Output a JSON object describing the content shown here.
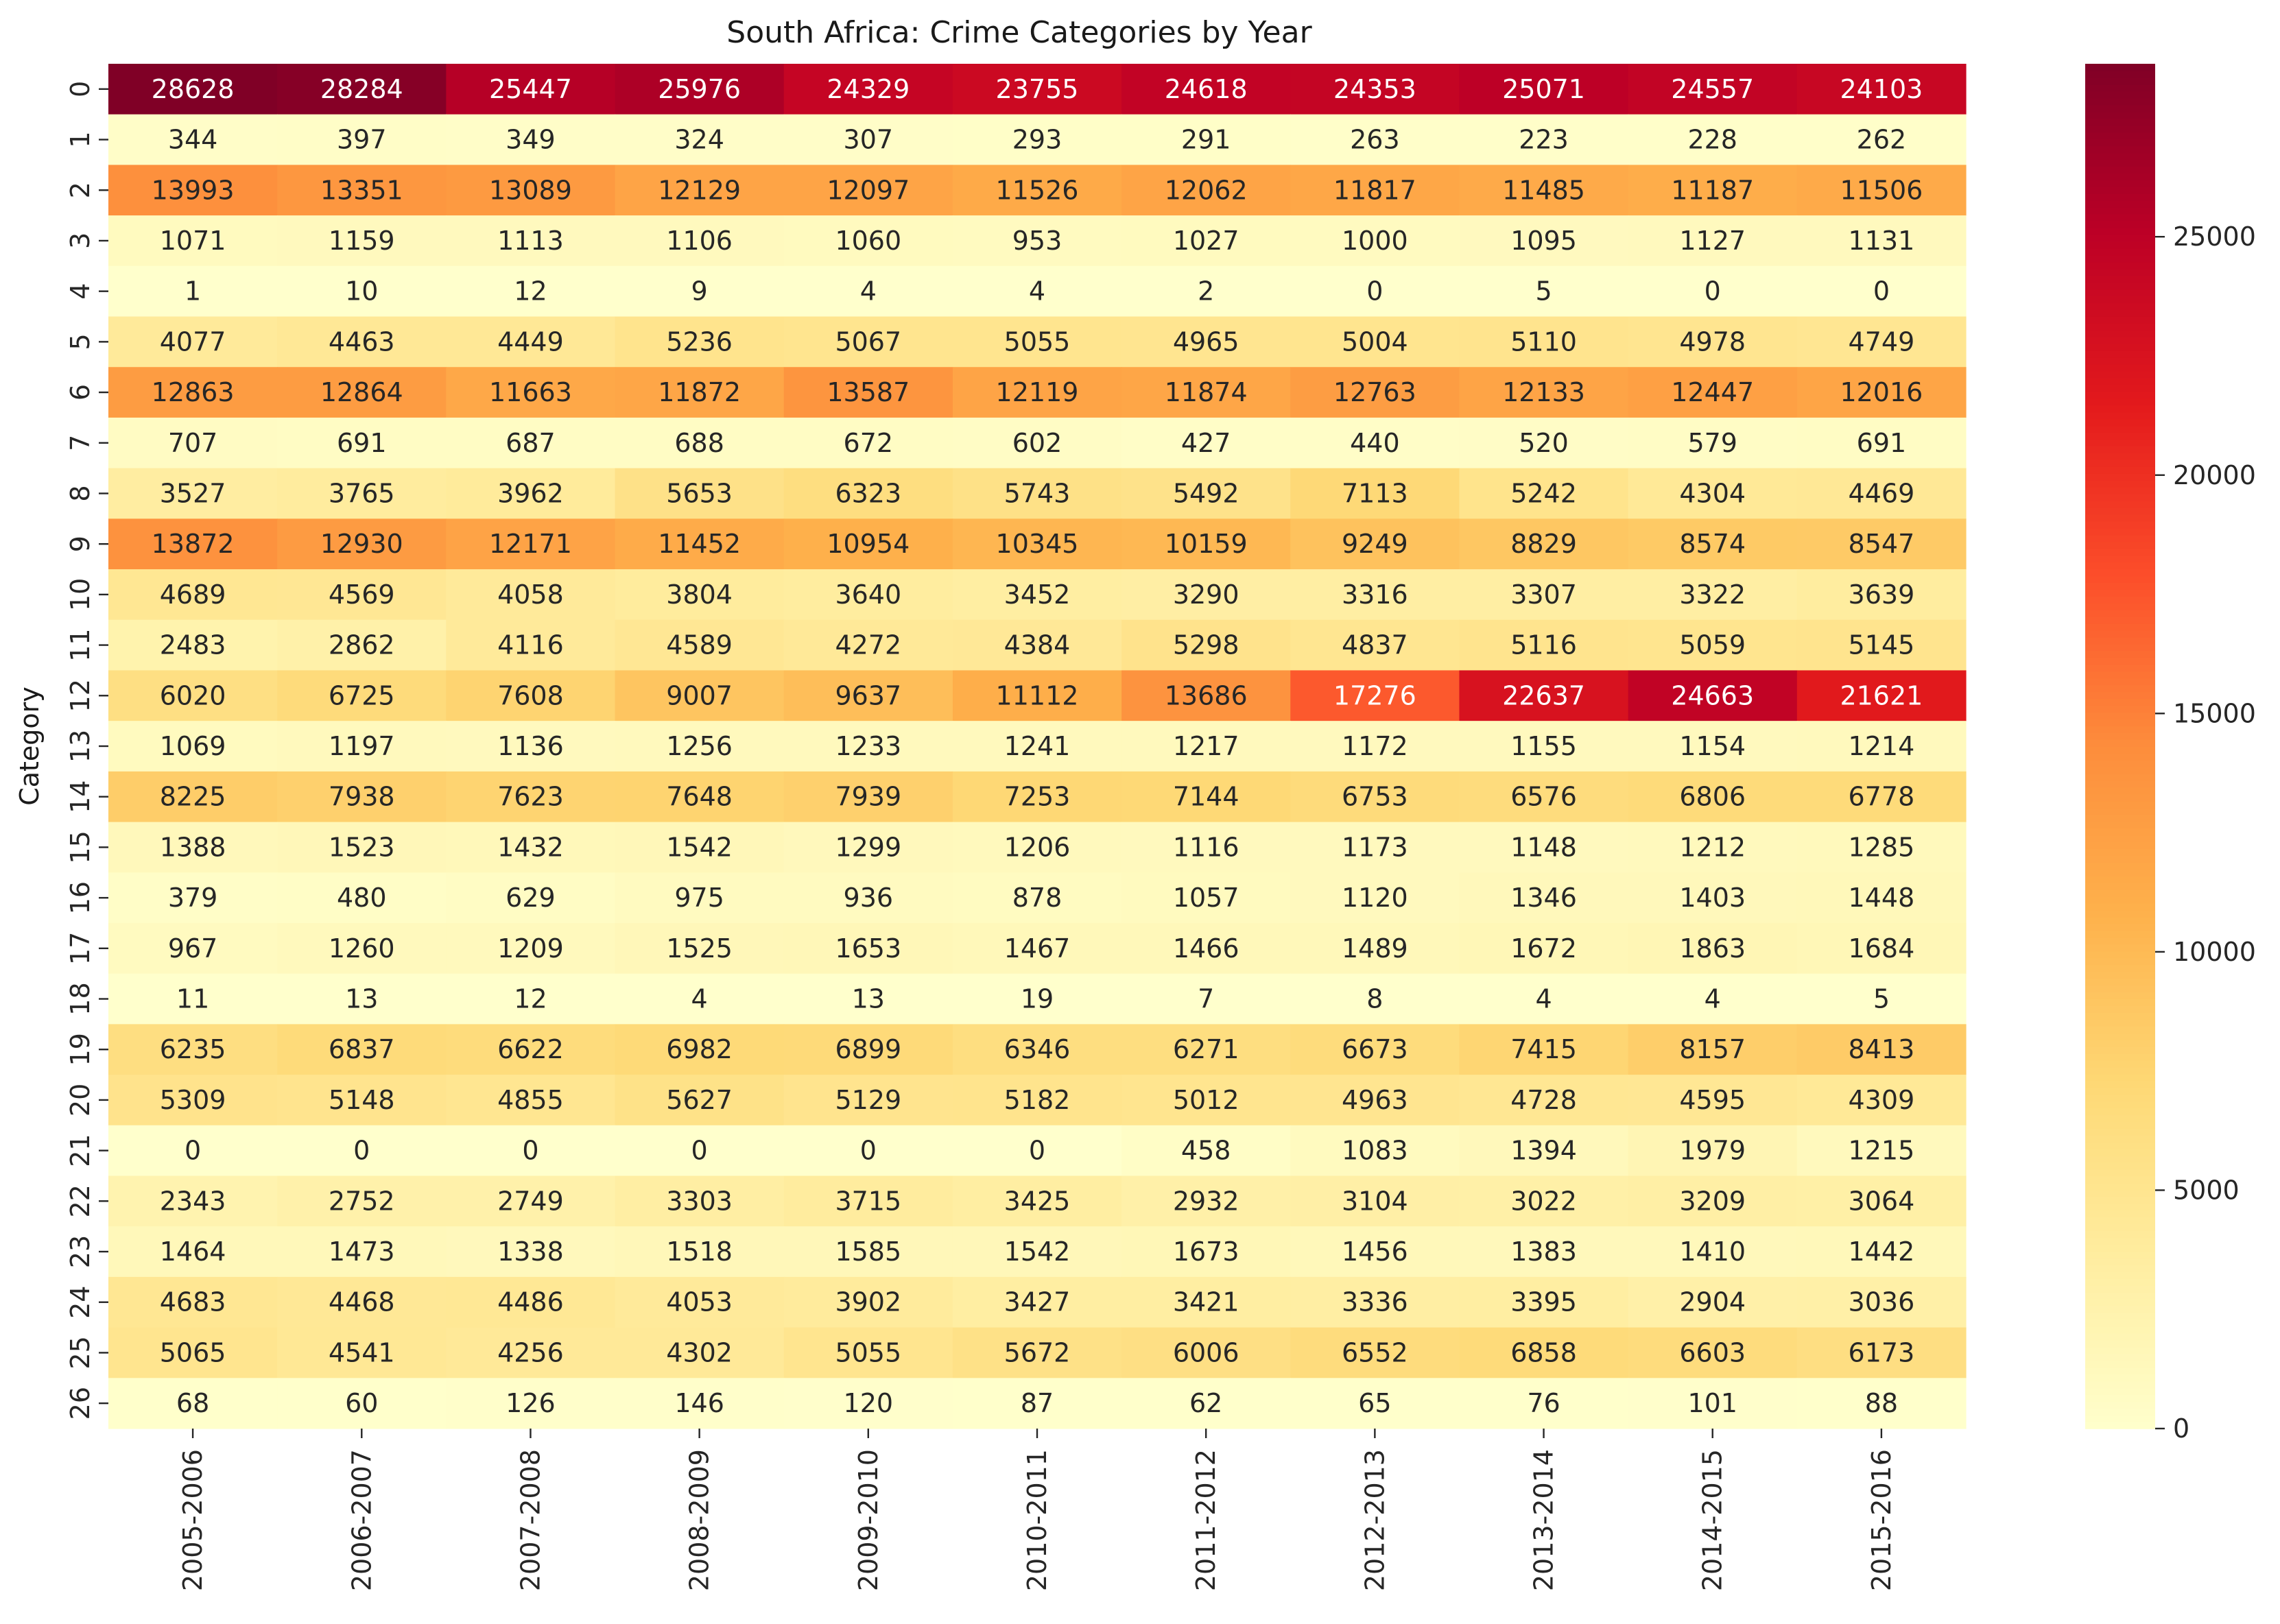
{
  "chart_data": {
    "type": "heatmap",
    "title": "South Africa: Crime Categories by Year",
    "xlabel": "",
    "ylabel": "Category",
    "x_categories": [
      "2005-2006",
      "2006-2007",
      "2007-2008",
      "2008-2009",
      "2009-2010",
      "2010-2011",
      "2011-2012",
      "2012-2013",
      "2013-2014",
      "2014-2015",
      "2015-2016"
    ],
    "y_categories": [
      "0",
      "1",
      "2",
      "3",
      "4",
      "5",
      "6",
      "7",
      "8",
      "9",
      "10",
      "11",
      "12",
      "13",
      "14",
      "15",
      "16",
      "17",
      "18",
      "19",
      "20",
      "21",
      "22",
      "23",
      "24",
      "25",
      "26"
    ],
    "values": [
      [
        28628,
        28284,
        25447,
        25976,
        24329,
        23755,
        24618,
        24353,
        25071,
        24557,
        24103
      ],
      [
        344,
        397,
        349,
        324,
        307,
        293,
        291,
        263,
        223,
        228,
        262
      ],
      [
        13993,
        13351,
        13089,
        12129,
        12097,
        11526,
        12062,
        11817,
        11485,
        11187,
        11506
      ],
      [
        1071,
        1159,
        1113,
        1106,
        1060,
        953,
        1027,
        1000,
        1095,
        1127,
        1131
      ],
      [
        1,
        10,
        12,
        9,
        4,
        4,
        2,
        0,
        5,
        0,
        0
      ],
      [
        4077,
        4463,
        4449,
        5236,
        5067,
        5055,
        4965,
        5004,
        5110,
        4978,
        4749
      ],
      [
        12863,
        12864,
        11663,
        11872,
        13587,
        12119,
        11874,
        12763,
        12133,
        12447,
        12016
      ],
      [
        707,
        691,
        687,
        688,
        672,
        602,
        427,
        440,
        520,
        579,
        691
      ],
      [
        3527,
        3765,
        3962,
        5653,
        6323,
        5743,
        5492,
        7113,
        5242,
        4304,
        4469
      ],
      [
        13872,
        12930,
        12171,
        11452,
        10954,
        10345,
        10159,
        9249,
        8829,
        8574,
        8547
      ],
      [
        4689,
        4569,
        4058,
        3804,
        3640,
        3452,
        3290,
        3316,
        3307,
        3322,
        3639
      ],
      [
        2483,
        2862,
        4116,
        4589,
        4272,
        4384,
        5298,
        4837,
        5116,
        5059,
        5145
      ],
      [
        6020,
        6725,
        7608,
        9007,
        9637,
        11112,
        13686,
        17276,
        22637,
        24663,
        21621
      ],
      [
        1069,
        1197,
        1136,
        1256,
        1233,
        1241,
        1217,
        1172,
        1155,
        1154,
        1214
      ],
      [
        8225,
        7938,
        7623,
        7648,
        7939,
        7253,
        7144,
        6753,
        6576,
        6806,
        6778
      ],
      [
        1388,
        1523,
        1432,
        1542,
        1299,
        1206,
        1116,
        1173,
        1148,
        1212,
        1285
      ],
      [
        379,
        480,
        629,
        975,
        936,
        878,
        1057,
        1120,
        1346,
        1403,
        1448
      ],
      [
        967,
        1260,
        1209,
        1525,
        1653,
        1467,
        1466,
        1489,
        1672,
        1863,
        1684
      ],
      [
        11,
        13,
        12,
        4,
        13,
        19,
        7,
        8,
        4,
        4,
        5
      ],
      [
        6235,
        6837,
        6622,
        6982,
        6899,
        6346,
        6271,
        6673,
        7415,
        8157,
        8413
      ],
      [
        5309,
        5148,
        4855,
        5627,
        5129,
        5182,
        5012,
        4963,
        4728,
        4595,
        4309
      ],
      [
        0,
        0,
        0,
        0,
        0,
        0,
        458,
        1083,
        1394,
        1979,
        1215
      ],
      [
        2343,
        2752,
        2749,
        3303,
        3715,
        3425,
        2932,
        3104,
        3022,
        3209,
        3064
      ],
      [
        1464,
        1473,
        1338,
        1518,
        1585,
        1542,
        1673,
        1456,
        1383,
        1410,
        1442
      ],
      [
        4683,
        4468,
        4486,
        4053,
        3902,
        3427,
        3421,
        3336,
        3395,
        2904,
        3036
      ],
      [
        5065,
        4541,
        4256,
        4302,
        5055,
        5672,
        6006,
        6552,
        6858,
        6603,
        6173
      ],
      [
        68,
        60,
        126,
        146,
        120,
        87,
        62,
        65,
        76,
        101,
        88
      ]
    ],
    "colormap": "YlOrRd",
    "colormap_stops": [
      "#ffffcc",
      "#ffeda0",
      "#fed976",
      "#feb24c",
      "#fd8d3c",
      "#fc4e2a",
      "#e31a1c",
      "#bd0026",
      "#800026"
    ],
    "vmin": 0,
    "vmax": 28628,
    "colorbar_ticks": [
      0,
      5000,
      10000,
      15000,
      20000,
      25000
    ],
    "annotations_shown": true,
    "grid": false,
    "legend": "colorbar-right"
  }
}
